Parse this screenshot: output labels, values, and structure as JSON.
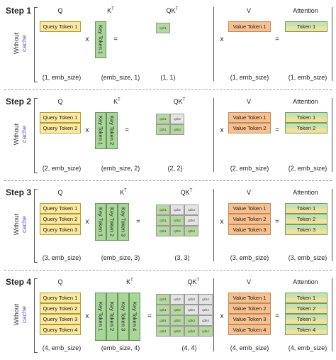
{
  "side_label": {
    "line1": "Without",
    "line2": "cache"
  },
  "headers": {
    "q": "Q",
    "kt": "K",
    "kt_sup": "T",
    "qk": "QK",
    "qk_sup": "T",
    "v": "V",
    "attention": "Attention"
  },
  "operators": {
    "multiply": "x",
    "equals": "="
  },
  "tokens": {
    "query": [
      "Query Token 1",
      "Query Token 2",
      "Query Token 3",
      "Query Token 4"
    ],
    "key": [
      "Key Token 1",
      "Key Token 2",
      "Key Token 3",
      "Key Token 4"
    ],
    "value": [
      "Value Token 1",
      "Value Token 2",
      "Value Token 3",
      "Value Token 4"
    ],
    "attention": [
      "Token 1",
      "Token 2",
      "Token 3",
      "Token 4"
    ]
  },
  "qk_cells": [
    [
      "q1k1",
      "q1k2",
      "q1k3",
      "q1k4"
    ],
    [
      "q2k1",
      "q2k2",
      "q2k3",
      "q2k4"
    ],
    [
      "q3k1",
      "q3k2",
      "q3k3",
      "q3k4"
    ],
    [
      "q4k1",
      "q4k2",
      "q4k3",
      "q4k4"
    ]
  ],
  "steps": [
    {
      "title": "Step 1",
      "n": 1,
      "shapes": {
        "q": "(1, emb_size)",
        "kt": "(emb_size, 1)",
        "qk": "(1, 1)",
        "v": "(1, emb_size)",
        "attention": "(1, emb_size)"
      }
    },
    {
      "title": "Step 2",
      "n": 2,
      "shapes": {
        "q": "(2, emb_size)",
        "kt": "(emb_size, 2)",
        "qk": "(2, 2)",
        "v": "(2, emb_size)",
        "attention": "(2, emb_size)"
      }
    },
    {
      "title": "Step 3",
      "n": 3,
      "shapes": {
        "q": "(3, emb_size)",
        "kt": "(emb_size, 3)",
        "qk": "(3, 3)",
        "v": "(3, emb_size)",
        "attention": "(3, emb_size)"
      }
    },
    {
      "title": "Step 4",
      "n": 4,
      "shapes": {
        "q": "(4, emb_size)",
        "kt": "(emb_size, 4)",
        "qk": "(4, 4)",
        "v": "(4, emb_size)",
        "attention": "(4, emb_size)"
      }
    }
  ]
}
